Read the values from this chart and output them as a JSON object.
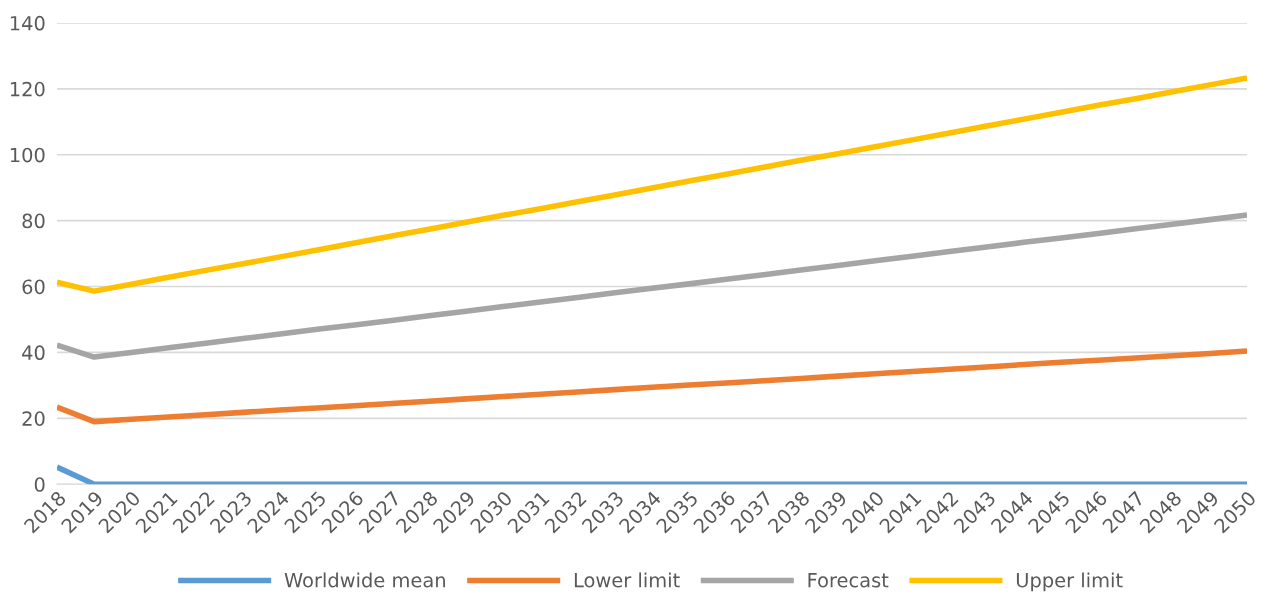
{
  "chart_data": {
    "type": "line",
    "categories": [
      "2018",
      "2019",
      "2020",
      "2021",
      "2022",
      "2023",
      "2024",
      "2025",
      "2026",
      "2027",
      "2028",
      "2029",
      "2030",
      "2031",
      "2032",
      "2033",
      "2034",
      "2035",
      "2036",
      "2037",
      "2038",
      "2039",
      "2040",
      "2041",
      "2042",
      "2043",
      "2044",
      "2045",
      "2046",
      "2047",
      "2048",
      "2049",
      "2050"
    ],
    "series": [
      {
        "name": "Worldwide mean",
        "color": "#5b9bd5",
        "values": [
          5.2,
          0,
          0,
          0,
          0,
          0,
          0,
          0,
          0,
          0,
          0,
          0,
          0,
          0,
          0,
          0,
          0,
          0,
          0,
          0,
          0,
          0,
          0,
          0,
          0,
          0,
          0,
          0,
          0,
          0,
          0,
          0,
          0
        ]
      },
      {
        "name": "Lower limit",
        "color": "#ed7d31",
        "values": [
          23.4,
          19.0,
          19.7,
          20.4,
          21.1,
          21.8,
          22.5,
          23.1,
          23.8,
          24.5,
          25.2,
          25.9,
          26.6,
          27.3,
          28.0,
          28.7,
          29.4,
          30.1,
          30.7,
          31.4,
          32.1,
          32.8,
          33.5,
          34.2,
          34.9,
          35.6,
          36.3,
          37.0,
          37.6,
          38.3,
          39.0,
          39.7,
          40.4
        ]
      },
      {
        "name": "Forecast",
        "color": "#a5a5a5",
        "values": [
          42.2,
          38.6,
          40.0,
          41.4,
          42.8,
          44.2,
          45.6,
          47.0,
          48.3,
          49.7,
          51.1,
          52.5,
          53.9,
          55.3,
          56.7,
          58.1,
          59.5,
          60.8,
          62.2,
          63.6,
          65.0,
          66.4,
          67.8,
          69.2,
          70.6,
          72.0,
          73.4,
          74.7,
          76.1,
          77.5,
          78.9,
          80.3,
          81.7
        ]
      },
      {
        "name": "Upper limit",
        "color": "#ffc000",
        "values": [
          61.3,
          58.6,
          60.7,
          62.8,
          64.9,
          66.9,
          69.0,
          71.1,
          73.2,
          75.3,
          77.4,
          79.5,
          81.6,
          83.6,
          85.7,
          87.8,
          89.9,
          92.0,
          94.1,
          96.2,
          98.3,
          100.3,
          102.4,
          104.5,
          106.6,
          108.7,
          110.8,
          112.9,
          115.0,
          117.0,
          119.1,
          121.2,
          123.3
        ]
      }
    ],
    "ylim": [
      0,
      140
    ],
    "yticks": [
      0,
      20,
      40,
      60,
      80,
      100,
      120,
      140
    ],
    "grid": "y",
    "legend": "bottom",
    "marker": "none",
    "line_style": "solid"
  }
}
